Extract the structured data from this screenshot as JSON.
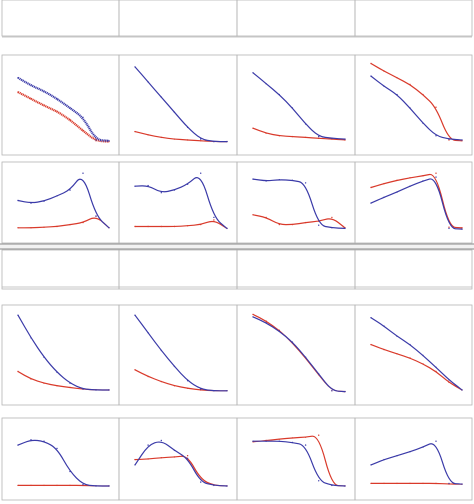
{
  "colors": {
    "red": "#d93a2b",
    "blue": "#3a3aa8",
    "frame": "#b4b4b4",
    "separator": "#9e9e9e"
  },
  "chart_data": {
    "type": "line",
    "title": "",
    "xlabel": "",
    "ylabel": "",
    "grid": false,
    "legend": "none",
    "axes_labels_shown": false,
    "panels": [
      {
        "id": "A1",
        "series": [
          {
            "color": "red",
            "values": [
              0.63,
              0.55,
              0.47,
              0.4,
              0.3,
              0.17,
              0.05,
              0.04
            ],
            "noisy": true
          },
          {
            "color": "blue",
            "values": [
              0.8,
              0.71,
              0.64,
              0.55,
              0.44,
              0.33,
              0.06,
              0.05
            ],
            "noisy": true
          }
        ]
      },
      {
        "id": "A2",
        "series": [
          {
            "color": "red",
            "values": [
              0.16,
              0.12,
              0.09,
              0.07,
              0.06,
              0.05,
              0.04,
              0.04
            ]
          },
          {
            "color": "blue",
            "values": [
              0.93,
              0.75,
              0.57,
              0.39,
              0.21,
              0.07,
              0.04,
              0.04
            ]
          }
        ]
      },
      {
        "id": "A3",
        "series": [
          {
            "color": "red",
            "values": [
              0.2,
              0.14,
              0.11,
              0.1,
              0.09,
              0.08,
              0.07,
              0.06
            ]
          },
          {
            "color": "blue",
            "values": [
              0.86,
              0.73,
              0.6,
              0.44,
              0.25,
              0.1,
              0.08,
              0.07
            ]
          }
        ]
      },
      {
        "id": "A4",
        "series": [
          {
            "color": "red",
            "values": [
              0.97,
              0.88,
              0.8,
              0.72,
              0.6,
              0.45,
              0.06,
              0.05
            ]
          },
          {
            "color": "blue",
            "values": [
              0.82,
              0.7,
              0.6,
              0.44,
              0.26,
              0.11,
              0.07,
              0.06
            ]
          }
        ]
      },
      {
        "id": "B1",
        "series": [
          {
            "color": "red",
            "values": [
              0.08,
              0.08,
              0.09,
              0.1,
              0.13,
              0.16,
              0.26,
              0.08
            ]
          },
          {
            "color": "blue",
            "values": [
              0.5,
              0.46,
              0.49,
              0.57,
              0.66,
              0.92,
              0.26,
              0.08
            ]
          }
        ]
      },
      {
        "id": "B2",
        "series": [
          {
            "color": "red",
            "values": [
              0.1,
              0.1,
              0.1,
              0.1,
              0.11,
              0.13,
              0.2,
              0.07
            ]
          },
          {
            "color": "blue",
            "values": [
              0.72,
              0.73,
              0.62,
              0.66,
              0.75,
              0.92,
              0.24,
              0.07
            ]
          }
        ]
      },
      {
        "id": "B3",
        "series": [
          {
            "color": "red",
            "values": [
              0.28,
              0.24,
              0.13,
              0.13,
              0.16,
              0.18,
              0.24,
              0.08
            ]
          },
          {
            "color": "blue",
            "values": [
              0.83,
              0.8,
              0.82,
              0.81,
              0.77,
              0.12,
              0.08,
              0.07
            ]
          }
        ]
      },
      {
        "id": "B4",
        "series": [
          {
            "color": "red",
            "values": [
              0.7,
              0.76,
              0.81,
              0.85,
              0.88,
              0.92,
              0.09,
              0.08
            ]
          },
          {
            "color": "blue",
            "values": [
              0.46,
              0.55,
              0.63,
              0.72,
              0.8,
              0.86,
              0.07,
              0.06
            ]
          }
        ]
      },
      {
        "id": "C1",
        "series": [
          {
            "color": "red",
            "values": [
              0.28,
              0.19,
              0.14,
              0.11,
              0.09,
              0.07,
              0.06,
              0.06
            ]
          },
          {
            "color": "blue",
            "values": [
              0.95,
              0.68,
              0.45,
              0.27,
              0.14,
              0.07,
              0.06,
              0.06
            ]
          }
        ]
      },
      {
        "id": "C2",
        "series": [
          {
            "color": "red",
            "values": [
              0.3,
              0.22,
              0.16,
              0.11,
              0.08,
              0.06,
              0.05,
              0.05
            ]
          },
          {
            "color": "blue",
            "values": [
              0.95,
              0.74,
              0.53,
              0.34,
              0.17,
              0.07,
              0.05,
              0.05
            ]
          }
        ]
      },
      {
        "id": "C3",
        "series": [
          {
            "color": "red",
            "values": [
              0.96,
              0.88,
              0.77,
              0.62,
              0.44,
              0.24,
              0.05,
              0.04
            ]
          },
          {
            "color": "blue",
            "values": [
              0.93,
              0.86,
              0.76,
              0.63,
              0.45,
              0.25,
              0.05,
              0.04
            ]
          }
        ]
      },
      {
        "id": "C4",
        "series": [
          {
            "color": "red",
            "values": [
              0.6,
              0.54,
              0.49,
              0.44,
              0.37,
              0.28,
              0.15,
              0.06
            ]
          },
          {
            "color": "blue",
            "values": [
              0.92,
              0.82,
              0.7,
              0.6,
              0.47,
              0.33,
              0.18,
              0.06
            ]
          }
        ]
      },
      {
        "id": "D1",
        "series": [
          {
            "color": "red",
            "values": [
              0.07,
              0.07,
              0.07,
              0.07,
              0.07,
              0.07,
              0.06,
              0.06
            ]
          },
          {
            "color": "blue",
            "values": [
              0.68,
              0.76,
              0.74,
              0.63,
              0.28,
              0.08,
              0.06,
              0.06
            ]
          }
        ]
      },
      {
        "id": "D2",
        "series": [
          {
            "color": "red",
            "values": [
              0.46,
              0.47,
              0.49,
              0.5,
              0.52,
              0.16,
              0.07,
              0.06
            ]
          },
          {
            "color": "blue",
            "values": [
              0.38,
              0.68,
              0.75,
              0.6,
              0.48,
              0.12,
              0.07,
              0.06
            ]
          }
        ]
      },
      {
        "id": "D3",
        "series": [
          {
            "color": "red",
            "values": [
              0.73,
              0.75,
              0.77,
              0.79,
              0.8,
              0.83,
              0.07,
              0.06
            ]
          },
          {
            "color": "blue",
            "values": [
              0.74,
              0.74,
              0.74,
              0.72,
              0.68,
              0.14,
              0.07,
              0.06
            ]
          }
        ]
      },
      {
        "id": "D4",
        "series": [
          {
            "color": "red",
            "values": [
              0.1,
              0.1,
              0.1,
              0.1,
              0.1,
              0.1,
              0.09,
              0.09
            ]
          },
          {
            "color": "blue",
            "values": [
              0.38,
              0.46,
              0.52,
              0.58,
              0.65,
              0.74,
              0.1,
              0.09
            ]
          }
        ]
      }
    ]
  }
}
